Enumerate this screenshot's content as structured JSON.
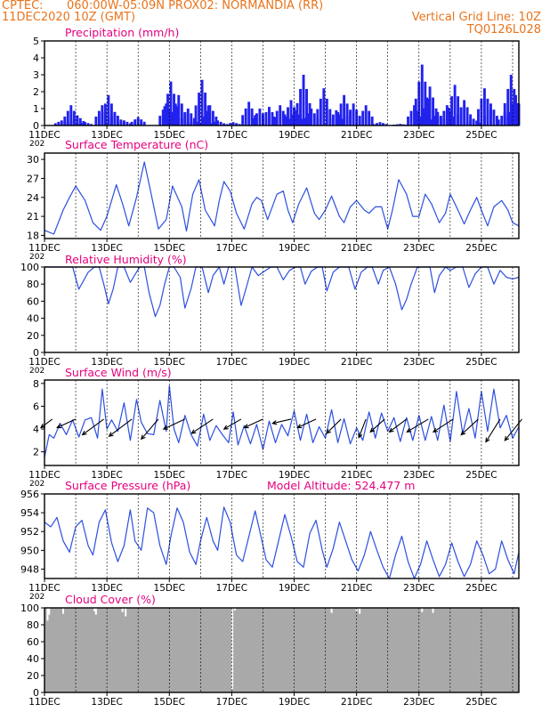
{
  "header": {
    "source": "CPTEC:",
    "location": "060:00W-05:09N   PROX02: NORMANDIA (RR)",
    "run": "11DEC2020 10Z (GMT)",
    "grid_line": "Vertical Grid Line: 10Z",
    "model_code": "TQ0126L028"
  },
  "colors": {
    "header_text": "#e8741c",
    "panel_title": "#e6007e",
    "series_line": "#2d4fe0",
    "precip_bars": "#2222ee",
    "wind_arrows": "#000000",
    "cloud_fill": "#a9a9a9",
    "grid_line": "#000000"
  },
  "x_axis": {
    "tick_labels": [
      "11DEC",
      "13DEC",
      "15DEC",
      "17DEC",
      "19DEC",
      "21DEC",
      "23DEC",
      "25DEC"
    ],
    "year_fragment": "202",
    "day_range": [
      0,
      15.2
    ],
    "major_tick_days": [
      0,
      2,
      4,
      6,
      8,
      10,
      12,
      14
    ],
    "vertical_grid_days": [
      0,
      1,
      2,
      3,
      4,
      5,
      6,
      7,
      8,
      9,
      10,
      11,
      12,
      13,
      14,
      15
    ]
  },
  "chart_data": [
    {
      "type": "bar",
      "title": "Precipitation (mm/h)",
      "ylim": [
        0,
        5
      ],
      "yticks": [
        0,
        1,
        2,
        3,
        4,
        5
      ],
      "x_unit": "days from 11DEC2020 10Z",
      "events": [
        {
          "x": 0.55,
          "v": 0.3
        },
        {
          "x": 0.85,
          "v": 1.2
        },
        {
          "x": 1.05,
          "v": 0.6
        },
        {
          "x": 1.3,
          "v": 0.2
        },
        {
          "x": 1.85,
          "v": 1.2
        },
        {
          "x": 2.05,
          "v": 1.8
        },
        {
          "x": 2.25,
          "v": 0.8
        },
        {
          "x": 2.55,
          "v": 0.3
        },
        {
          "x": 3.0,
          "v": 0.5
        },
        {
          "x": 3.9,
          "v": 1.3
        },
        {
          "x": 4.05,
          "v": 2.6
        },
        {
          "x": 4.3,
          "v": 1.8
        },
        {
          "x": 4.6,
          "v": 1.0
        },
        {
          "x": 4.8,
          "v": 0.3
        },
        {
          "x": 5.05,
          "v": 2.7
        },
        {
          "x": 5.3,
          "v": 1.2
        },
        {
          "x": 5.55,
          "v": 0.3
        },
        {
          "x": 6.05,
          "v": 0.2
        },
        {
          "x": 6.55,
          "v": 1.4
        },
        {
          "x": 6.9,
          "v": 1.0
        },
        {
          "x": 7.2,
          "v": 1.1
        },
        {
          "x": 7.55,
          "v": 1.2
        },
        {
          "x": 7.9,
          "v": 1.5
        },
        {
          "x": 8.05,
          "v": 0.9
        },
        {
          "x": 8.3,
          "v": 3.0
        },
        {
          "x": 8.55,
          "v": 1.0
        },
        {
          "x": 8.95,
          "v": 2.2
        },
        {
          "x": 9.35,
          "v": 0.9
        },
        {
          "x": 9.6,
          "v": 1.8
        },
        {
          "x": 9.9,
          "v": 1.3
        },
        {
          "x": 10.3,
          "v": 1.2
        },
        {
          "x": 10.75,
          "v": 0.2
        },
        {
          "x": 11.4,
          "v": 0.1
        },
        {
          "x": 11.85,
          "v": 1.2
        },
        {
          "x": 12.1,
          "v": 3.6
        },
        {
          "x": 12.35,
          "v": 2.3
        },
        {
          "x": 12.6,
          "v": 0.8
        },
        {
          "x": 12.9,
          "v": 1.2
        },
        {
          "x": 13.15,
          "v": 2.4
        },
        {
          "x": 13.45,
          "v": 1.5
        },
        {
          "x": 13.75,
          "v": 0.4
        },
        {
          "x": 14.1,
          "v": 2.2
        },
        {
          "x": 14.3,
          "v": 1.3
        },
        {
          "x": 14.75,
          "v": 0.8
        },
        {
          "x": 14.95,
          "v": 3.0
        },
        {
          "x": 15.1,
          "v": 1.8
        }
      ]
    },
    {
      "type": "line",
      "title": "Surface Temperature (nC)",
      "ylim": [
        17.5,
        31
      ],
      "yticks": [
        18,
        21,
        24,
        27,
        30
      ],
      "series": [
        {
          "x": [
            0,
            0.3,
            0.6,
            0.8,
            1.0,
            1.3,
            1.55,
            1.8,
            2.0,
            2.3,
            2.5,
            2.7,
            2.95,
            3.2,
            3.4,
            3.65,
            3.9,
            4.1,
            4.4,
            4.55,
            4.75,
            4.95,
            5.15,
            5.45,
            5.6,
            5.75,
            5.95,
            6.15,
            6.4,
            6.65,
            6.8,
            6.95,
            7.15,
            7.45,
            7.65,
            7.8,
            7.95,
            8.15,
            8.4,
            8.65,
            8.8,
            9.0,
            9.2,
            9.45,
            9.6,
            9.8,
            10.0,
            10.25,
            10.4,
            10.6,
            10.8,
            11.0,
            11.15,
            11.35,
            11.6,
            11.8,
            12.0,
            12.2,
            12.4,
            12.65,
            12.85,
            13.0,
            13.2,
            13.45,
            13.65,
            13.85,
            14.0,
            14.2,
            14.4,
            14.65,
            14.85,
            15.0,
            15.2
          ],
          "y": [
            18.8,
            18.2,
            22.0,
            24.0,
            25.8,
            23.5,
            20.0,
            18.8,
            21.0,
            26.0,
            23.0,
            19.5,
            24.0,
            29.6,
            25.0,
            19.0,
            20.5,
            25.8,
            22.5,
            18.7,
            24.5,
            26.8,
            22.0,
            19.5,
            23.5,
            26.5,
            25.0,
            21.5,
            19.0,
            23.0,
            24.0,
            23.5,
            20.5,
            24.5,
            25.0,
            22.0,
            20.0,
            23.0,
            25.5,
            21.5,
            20.5,
            22.0,
            24.2,
            21.0,
            20.0,
            22.5,
            23.5,
            22.0,
            21.5,
            22.5,
            22.5,
            19.0,
            22.0,
            26.8,
            24.5,
            21.0,
            21.0,
            24.5,
            23.0,
            20.0,
            21.5,
            24.5,
            22.5,
            19.8,
            22.0,
            24.0,
            22.0,
            19.5,
            22.5,
            23.5,
            22.0,
            20.0,
            19.5
          ]
        }
      ]
    },
    {
      "type": "line",
      "title": "Relative Humidity (%)",
      "ylim": [
        0,
        100
      ],
      "yticks": [
        0,
        20,
        40,
        60,
        80,
        100
      ],
      "series": [
        {
          "x": [
            0,
            0.25,
            0.5,
            0.7,
            0.9,
            1.1,
            1.4,
            1.6,
            1.75,
            1.9,
            2.05,
            2.2,
            2.35,
            2.55,
            2.75,
            2.9,
            3.05,
            3.2,
            3.35,
            3.55,
            3.7,
            3.85,
            4.0,
            4.15,
            4.35,
            4.5,
            4.7,
            4.85,
            5.05,
            5.25,
            5.4,
            5.6,
            5.75,
            5.9,
            6.1,
            6.3,
            6.45,
            6.65,
            6.85,
            7.05,
            7.25,
            7.45,
            7.65,
            7.85,
            8.05,
            8.2,
            8.35,
            8.55,
            8.75,
            8.9,
            9.05,
            9.25,
            9.45,
            9.6,
            9.75,
            9.95,
            10.15,
            10.35,
            10.5,
            10.7,
            10.85,
            11.05,
            11.25,
            11.45,
            11.6,
            11.75,
            11.95,
            12.15,
            12.35,
            12.5,
            12.65,
            12.85,
            13.0,
            13.2,
            13.4,
            13.6,
            13.8,
            14.0,
            14.2,
            14.4,
            14.6,
            14.8,
            15.0,
            15.2
          ],
          "y": [
            100,
            100,
            100,
            100,
            100,
            74,
            94,
            100,
            100,
            80,
            57,
            74,
            100,
            100,
            82,
            91,
            100,
            100,
            70,
            42,
            55,
            80,
            100,
            100,
            88,
            52,
            75,
            100,
            100,
            70,
            90,
            100,
            80,
            100,
            100,
            55,
            74,
            100,
            90,
            95,
            100,
            100,
            85,
            96,
            100,
            100,
            80,
            95,
            100,
            100,
            72,
            94,
            100,
            100,
            100,
            74,
            94,
            100,
            100,
            80,
            96,
            100,
            80,
            50,
            62,
            80,
            100,
            100,
            100,
            70,
            90,
            100,
            96,
            100,
            100,
            76,
            92,
            100,
            100,
            80,
            96,
            88,
            86,
            88
          ]
        }
      ]
    },
    {
      "type": "line",
      "title": "Surface Wind (m/s)",
      "ylim": [
        0.8,
        8.3
      ],
      "yticks": [
        2,
        4,
        6,
        8
      ],
      "series": [
        {
          "x": [
            0,
            0.15,
            0.3,
            0.5,
            0.7,
            0.9,
            1.1,
            1.3,
            1.5,
            1.7,
            1.85,
            2.0,
            2.15,
            2.35,
            2.55,
            2.75,
            2.95,
            3.1,
            3.3,
            3.5,
            3.7,
            3.9,
            4.0,
            4.15,
            4.3,
            4.5,
            4.7,
            4.9,
            5.1,
            5.3,
            5.5,
            5.7,
            5.9,
            6.05,
            6.2,
            6.4,
            6.6,
            6.8,
            7.0,
            7.2,
            7.4,
            7.6,
            7.8,
            8.0,
            8.2,
            8.4,
            8.6,
            8.8,
            9.0,
            9.2,
            9.4,
            9.6,
            9.8,
            10.0,
            10.2,
            10.4,
            10.6,
            10.8,
            11.0,
            11.2,
            11.4,
            11.6,
            11.8,
            12.0,
            12.2,
            12.4,
            12.6,
            12.8,
            13.0,
            13.2,
            13.4,
            13.6,
            13.8,
            14.0,
            14.2,
            14.4,
            14.6,
            14.8,
            15.0,
            15.2
          ],
          "y": [
            1.5,
            3.5,
            3.2,
            4.5,
            3.5,
            4.8,
            3.3,
            4.8,
            5.0,
            3.2,
            7.5,
            4.0,
            4.8,
            3.8,
            6.3,
            3.0,
            6.6,
            4.6,
            3.6,
            3.5,
            6.5,
            3.8,
            7.8,
            4.0,
            2.8,
            5.2,
            3.5,
            2.5,
            5.3,
            3.0,
            4.3,
            3.5,
            2.8,
            5.5,
            2.6,
            4.3,
            2.7,
            4.4,
            2.2,
            4.7,
            2.8,
            4.4,
            3.4,
            5.6,
            3.0,
            5.3,
            2.8,
            4.2,
            3.2,
            5.7,
            2.8,
            4.9,
            2.7,
            4.1,
            3.0,
            5.5,
            3.2,
            5.4,
            3.8,
            5.0,
            2.9,
            5.0,
            3.0,
            5.2,
            3.0,
            5.1,
            3.0,
            6.1,
            2.9,
            7.3,
            3.6,
            5.8,
            3.2,
            7.3,
            3.8,
            7.5,
            4.1,
            5.2,
            3.2,
            4.2
          ]
        }
      ],
      "arrows": [
        {
          "x": 0.25,
          "u": -0.8,
          "v": -0.6
        },
        {
          "x": 1.0,
          "u": -1.3,
          "v": -0.6
        },
        {
          "x": 1.9,
          "u": -1.5,
          "v": -1.1
        },
        {
          "x": 2.8,
          "u": -1.6,
          "v": -1.2
        },
        {
          "x": 3.65,
          "u": -1.2,
          "v": -1.4
        },
        {
          "x": 4.5,
          "u": -1.5,
          "v": -0.7
        },
        {
          "x": 5.4,
          "u": -1.5,
          "v": -1.0
        },
        {
          "x": 6.3,
          "u": -1.2,
          "v": -0.7
        },
        {
          "x": 7.0,
          "u": -1.3,
          "v": -0.6
        },
        {
          "x": 7.9,
          "u": -1.3,
          "v": -0.3
        },
        {
          "x": 8.7,
          "u": -1.3,
          "v": -0.6
        },
        {
          "x": 9.5,
          "u": -1.0,
          "v": -1.0
        },
        {
          "x": 10.3,
          "u": -0.5,
          "v": -1.3
        },
        {
          "x": 10.9,
          "u": -1.0,
          "v": -0.9
        },
        {
          "x": 11.6,
          "u": -1.2,
          "v": -0.9
        },
        {
          "x": 12.3,
          "u": -1.5,
          "v": -0.9
        },
        {
          "x": 13.1,
          "u": -1.4,
          "v": -0.9
        },
        {
          "x": 13.9,
          "u": -1.2,
          "v": -1.1
        },
        {
          "x": 14.6,
          "u": -1.0,
          "v": -1.6
        },
        {
          "x": 15.3,
          "u": -1.2,
          "v": -1.5
        }
      ]
    },
    {
      "type": "line",
      "title": "Surface Pressure (hPa)",
      "annotation": "Model Altitude: 524.477 m",
      "ylim": [
        947,
        956
      ],
      "yticks": [
        948,
        950,
        952,
        954,
        956
      ],
      "series": [
        {
          "x": [
            0,
            0.2,
            0.4,
            0.6,
            0.8,
            1.0,
            1.2,
            1.4,
            1.55,
            1.75,
            1.95,
            2.15,
            2.35,
            2.55,
            2.75,
            2.9,
            3.1,
            3.3,
            3.5,
            3.7,
            3.9,
            4.05,
            4.25,
            4.45,
            4.65,
            4.85,
            5.0,
            5.2,
            5.4,
            5.55,
            5.75,
            5.95,
            6.15,
            6.35,
            6.55,
            6.75,
            6.9,
            7.1,
            7.3,
            7.5,
            7.7,
            7.9,
            8.1,
            8.3,
            8.5,
            8.7,
            8.9,
            9.05,
            9.25,
            9.45,
            9.65,
            9.85,
            10.05,
            10.25,
            10.45,
            10.65,
            10.85,
            11.05,
            11.25,
            11.45,
            11.65,
            11.85,
            12.05,
            12.25,
            12.45,
            12.65,
            12.85,
            13.05,
            13.25,
            13.45,
            13.65,
            13.85,
            14.05,
            14.25,
            14.45,
            14.65,
            14.85,
            15.05,
            15.2
          ],
          "y": [
            953.0,
            952.5,
            953.5,
            951.0,
            949.8,
            952.5,
            953.2,
            950.5,
            949.5,
            953.0,
            954.3,
            950.8,
            948.8,
            950.5,
            954.3,
            951.0,
            950.0,
            954.5,
            954.0,
            950.5,
            948.5,
            951.5,
            954.5,
            953.0,
            949.8,
            948.5,
            951.0,
            953.5,
            951.0,
            950.0,
            954.6,
            953.0,
            949.5,
            948.8,
            951.5,
            954.2,
            952.0,
            949.0,
            948.2,
            951.0,
            953.8,
            951.5,
            948.8,
            948.2,
            951.8,
            953.2,
            950.0,
            948.2,
            950.2,
            953.0,
            951.0,
            949.0,
            947.8,
            949.5,
            952.0,
            950.0,
            948.2,
            947.0,
            949.5,
            951.5,
            948.8,
            947.0,
            948.5,
            951.0,
            949.0,
            947.2,
            948.5,
            950.8,
            948.8,
            947.2,
            948.5,
            951.0,
            949.5,
            947.5,
            948.0,
            951.0,
            949.0,
            947.5,
            949.8
          ]
        }
      ]
    },
    {
      "type": "bar",
      "title": "Cloud Cover (%)",
      "ylim": [
        0,
        100
      ],
      "yticks": [
        0,
        20,
        40,
        60,
        80,
        100
      ],
      "baseline_percent": 100,
      "dips": [
        {
          "x": 0.1,
          "v": 85
        },
        {
          "x": 0.15,
          "v": 92
        },
        {
          "x": 0.6,
          "v": 93
        },
        {
          "x": 1.6,
          "v": 96
        },
        {
          "x": 1.65,
          "v": 92
        },
        {
          "x": 2.5,
          "v": 95
        },
        {
          "x": 2.6,
          "v": 90
        },
        {
          "x": 6.02,
          "v": 4
        },
        {
          "x": 6.1,
          "v": 97
        },
        {
          "x": 9.2,
          "v": 94
        },
        {
          "x": 10.0,
          "v": 96
        },
        {
          "x": 10.1,
          "v": 93
        },
        {
          "x": 12.1,
          "v": 95
        },
        {
          "x": 12.45,
          "v": 94
        }
      ]
    }
  ]
}
